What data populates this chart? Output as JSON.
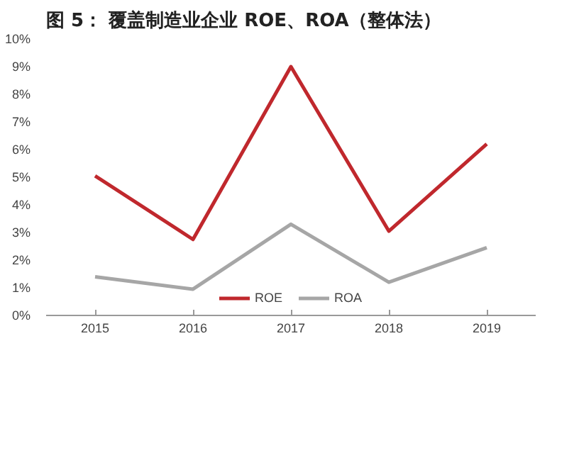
{
  "chart_data": {
    "type": "line",
    "title": "图 5： 覆盖制造业企业 ROE、ROA（整体法）",
    "categories": [
      "2015",
      "2016",
      "2017",
      "2018",
      "2019"
    ],
    "series": [
      {
        "name": "ROE",
        "color": "#c0282d",
        "values": [
          5.05,
          2.75,
          9.0,
          3.05,
          6.2
        ]
      },
      {
        "name": "ROA",
        "color": "#a6a6a6",
        "values": [
          1.4,
          0.95,
          3.3,
          1.2,
          2.45
        ]
      }
    ],
    "ylim": [
      0,
      10
    ],
    "yticks": [
      {
        "value": 0,
        "label": "0%"
      },
      {
        "value": 1,
        "label": "1%"
      },
      {
        "value": 2,
        "label": "2%"
      },
      {
        "value": 3,
        "label": "3%"
      },
      {
        "value": 4,
        "label": "4%"
      },
      {
        "value": 5,
        "label": "5%"
      },
      {
        "value": 6,
        "label": "6%"
      },
      {
        "value": 7,
        "label": "7%"
      },
      {
        "value": 8,
        "label": "8%"
      },
      {
        "value": 9,
        "label": "9%"
      },
      {
        "value": 10,
        "label": "10%"
      }
    ],
    "grid": false,
    "legend": "bottom",
    "marker": "none",
    "line_style": "solid"
  }
}
